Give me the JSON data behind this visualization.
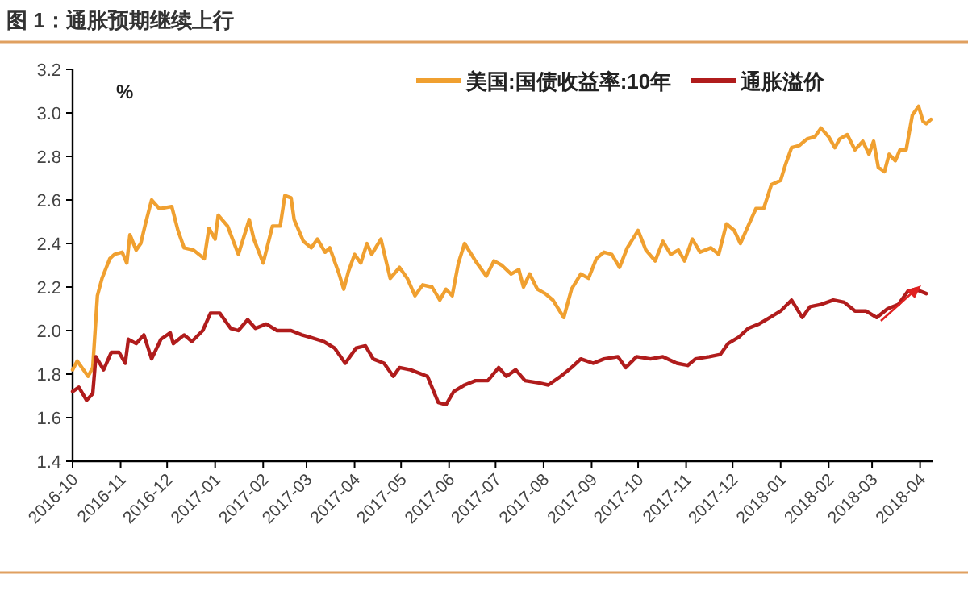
{
  "chart_data": {
    "type": "line",
    "title": "图 1：通胀预期继续上行",
    "ylabel": "%",
    "legend": "top right",
    "grid": false,
    "marker": "none",
    "line_style": "solid",
    "xlim": [
      "2016-10-01",
      "2018-04-09"
    ],
    "xticks": [
      {
        "value": "2016-10-01",
        "label": "2016-10"
      },
      {
        "value": "2016-11-01",
        "label": "2016-11"
      },
      {
        "value": "2016-12-01",
        "label": "2016-12"
      },
      {
        "value": "2017-01-01",
        "label": "2017-01"
      },
      {
        "value": "2017-02-01",
        "label": "2017-02"
      },
      {
        "value": "2017-03-01",
        "label": "2017-03"
      },
      {
        "value": "2017-04-01",
        "label": "2017-04"
      },
      {
        "value": "2017-05-01",
        "label": "2017-05"
      },
      {
        "value": "2017-06-01",
        "label": "2017-06"
      },
      {
        "value": "2017-07-01",
        "label": "2017-07"
      },
      {
        "value": "2017-08-01",
        "label": "2017-08"
      },
      {
        "value": "2017-09-01",
        "label": "2017-09"
      },
      {
        "value": "2017-10-01",
        "label": "2017-10"
      },
      {
        "value": "2017-11-01",
        "label": "2017-11"
      },
      {
        "value": "2017-12-01",
        "label": "2017-12"
      },
      {
        "value": "2018-01-01",
        "label": "2018-01"
      },
      {
        "value": "2018-02-01",
        "label": "2018-02"
      },
      {
        "value": "2018-03-01",
        "label": "2018-03"
      },
      {
        "value": "2018-04-01",
        "label": "2018-04"
      }
    ],
    "ylim": [
      1.4,
      3.2
    ],
    "yticks": [
      {
        "value": 1.4,
        "label": "1.4"
      },
      {
        "value": 1.6,
        "label": "1.6"
      },
      {
        "value": 1.8,
        "label": "1.8"
      },
      {
        "value": 2.0,
        "label": "2.0"
      },
      {
        "value": 2.2,
        "label": "2.2"
      },
      {
        "value": 2.4,
        "label": "2.4"
      },
      {
        "value": 2.6,
        "label": "2.6"
      },
      {
        "value": 2.8,
        "label": "2.8"
      },
      {
        "value": 3.0,
        "label": "3.0"
      },
      {
        "value": 3.2,
        "label": "3.2"
      }
    ],
    "series": [
      {
        "name": "美国:国债收益率:10年",
        "color": "#f0a030",
        "x": [
          "2016-10-01",
          "2016-10-04",
          "2016-10-11",
          "2016-10-14",
          "2016-10-17",
          "2016-10-20",
          "2016-10-25",
          "2016-10-28",
          "2016-11-02",
          "2016-11-05",
          "2016-11-07",
          "2016-11-11",
          "2016-11-14",
          "2016-11-17",
          "2016-11-21",
          "2016-11-26",
          "2016-12-04",
          "2016-12-08",
          "2016-12-12",
          "2016-12-18",
          "2016-12-25",
          "2016-12-28",
          "2017-01-01",
          "2017-01-03",
          "2017-01-09",
          "2017-01-16",
          "2017-01-23",
          "2017-01-26",
          "2017-02-01",
          "2017-02-07",
          "2017-02-12",
          "2017-02-15",
          "2017-02-19",
          "2017-02-21",
          "2017-02-27",
          "2017-03-04",
          "2017-03-08",
          "2017-03-13",
          "2017-03-16",
          "2017-03-22",
          "2017-03-25",
          "2017-03-28",
          "2017-04-01",
          "2017-04-05",
          "2017-04-09",
          "2017-04-12",
          "2017-04-18",
          "2017-04-21",
          "2017-04-24",
          "2017-04-30",
          "2017-05-05",
          "2017-05-10",
          "2017-05-15",
          "2017-05-21",
          "2017-05-26",
          "2017-05-30",
          "2017-06-03",
          "2017-06-07",
          "2017-06-11",
          "2017-06-18",
          "2017-06-25",
          "2017-06-30",
          "2017-07-05",
          "2017-07-11",
          "2017-07-16",
          "2017-07-19",
          "2017-07-23",
          "2017-07-28",
          "2017-08-02",
          "2017-08-07",
          "2017-08-14",
          "2017-08-19",
          "2017-08-25",
          "2017-08-30",
          "2017-09-04",
          "2017-09-09",
          "2017-09-14",
          "2017-09-19",
          "2017-09-24",
          "2017-10-01",
          "2017-10-06",
          "2017-10-12",
          "2017-10-17",
          "2017-10-22",
          "2017-10-27",
          "2017-10-31",
          "2017-11-05",
          "2017-11-10",
          "2017-11-17",
          "2017-11-22",
          "2017-11-27",
          "2017-12-02",
          "2017-12-06",
          "2017-12-11",
          "2017-12-16",
          "2017-12-21",
          "2017-12-26",
          "2018-01-01",
          "2018-01-04",
          "2018-01-08",
          "2018-01-13",
          "2018-01-18",
          "2018-01-23",
          "2018-01-27",
          "2018-02-01",
          "2018-02-05",
          "2018-02-08",
          "2018-02-13",
          "2018-02-18",
          "2018-02-23",
          "2018-02-27",
          "2018-03-02",
          "2018-03-05",
          "2018-03-09",
          "2018-03-12",
          "2018-03-16",
          "2018-03-19",
          "2018-03-23",
          "2018-03-27",
          "2018-03-31",
          "2018-04-03",
          "2018-04-05",
          "2018-04-08"
        ],
        "values": [
          1.82,
          1.86,
          1.79,
          1.83,
          2.16,
          2.24,
          2.33,
          2.35,
          2.36,
          2.31,
          2.44,
          2.37,
          2.4,
          2.49,
          2.6,
          2.56,
          2.57,
          2.46,
          2.38,
          2.37,
          2.33,
          2.47,
          2.42,
          2.53,
          2.48,
          2.35,
          2.51,
          2.42,
          2.31,
          2.48,
          2.48,
          2.62,
          2.61,
          2.51,
          2.41,
          2.38,
          2.42,
          2.36,
          2.38,
          2.26,
          2.19,
          2.27,
          2.35,
          2.31,
          2.4,
          2.35,
          2.42,
          2.33,
          2.24,
          2.29,
          2.24,
          2.16,
          2.21,
          2.2,
          2.14,
          2.19,
          2.16,
          2.31,
          2.4,
          2.32,
          2.25,
          2.32,
          2.3,
          2.26,
          2.28,
          2.2,
          2.26,
          2.19,
          2.17,
          2.14,
          2.06,
          2.19,
          2.26,
          2.24,
          2.33,
          2.36,
          2.35,
          2.29,
          2.38,
          2.46,
          2.37,
          2.32,
          2.41,
          2.35,
          2.37,
          2.32,
          2.42,
          2.36,
          2.38,
          2.35,
          2.49,
          2.46,
          2.4,
          2.48,
          2.56,
          2.56,
          2.67,
          2.69,
          2.76,
          2.84,
          2.85,
          2.88,
          2.89,
          2.93,
          2.89,
          2.84,
          2.88,
          2.9,
          2.83,
          2.87,
          2.81,
          2.87,
          2.75,
          2.73,
          2.81,
          2.78,
          2.83,
          2.83,
          2.99,
          3.03,
          2.96,
          2.95,
          2.97
        ]
      },
      {
        "name": "通胀溢价",
        "color": "#b01c1c",
        "x": [
          "2016-10-01",
          "2016-10-05",
          "2016-10-10",
          "2016-10-14",
          "2016-10-16",
          "2016-10-21",
          "2016-10-26",
          "2016-10-31",
          "2016-11-04",
          "2016-11-06",
          "2016-11-11",
          "2016-11-16",
          "2016-11-21",
          "2016-11-27",
          "2016-12-03",
          "2016-12-05",
          "2016-12-12",
          "2016-12-17",
          "2016-12-24",
          "2016-12-29",
          "2017-01-04",
          "2017-01-11",
          "2017-01-16",
          "2017-01-22",
          "2017-01-27",
          "2017-02-03",
          "2017-02-10",
          "2017-02-19",
          "2017-02-26",
          "2017-03-03",
          "2017-03-12",
          "2017-03-19",
          "2017-03-26",
          "2017-04-02",
          "2017-04-08",
          "2017-04-13",
          "2017-04-20",
          "2017-04-26",
          "2017-04-30",
          "2017-05-07",
          "2017-05-18",
          "2017-05-25",
          "2017-05-30",
          "2017-06-04",
          "2017-06-11",
          "2017-06-18",
          "2017-06-26",
          "2017-07-03",
          "2017-07-08",
          "2017-07-14",
          "2017-07-20",
          "2017-07-29",
          "2017-08-04",
          "2017-08-12",
          "2017-08-19",
          "2017-08-25",
          "2017-09-02",
          "2017-09-09",
          "2017-09-18",
          "2017-09-23",
          "2017-09-30",
          "2017-10-09",
          "2017-10-17",
          "2017-10-26",
          "2017-11-02",
          "2017-11-07",
          "2017-11-16",
          "2017-11-23",
          "2017-11-28",
          "2017-12-05",
          "2017-12-11",
          "2017-12-18",
          "2017-12-25",
          "2018-01-01",
          "2018-01-08",
          "2018-01-15",
          "2018-01-20",
          "2018-01-27",
          "2018-02-04",
          "2018-02-11",
          "2018-02-18",
          "2018-02-25",
          "2018-03-04",
          "2018-03-11",
          "2018-03-18",
          "2018-03-24",
          "2018-03-29",
          "2018-04-05"
        ],
        "values": [
          1.72,
          1.74,
          1.68,
          1.71,
          1.88,
          1.82,
          1.9,
          1.9,
          1.85,
          1.96,
          1.94,
          1.98,
          1.87,
          1.96,
          1.99,
          1.94,
          1.98,
          1.95,
          2.0,
          2.08,
          2.08,
          2.01,
          2.0,
          2.05,
          2.01,
          2.03,
          2.0,
          2.0,
          1.98,
          1.97,
          1.95,
          1.92,
          1.85,
          1.92,
          1.93,
          1.87,
          1.85,
          1.79,
          1.83,
          1.82,
          1.79,
          1.67,
          1.66,
          1.72,
          1.75,
          1.77,
          1.77,
          1.83,
          1.79,
          1.82,
          1.77,
          1.76,
          1.75,
          1.79,
          1.83,
          1.87,
          1.85,
          1.87,
          1.88,
          1.83,
          1.88,
          1.87,
          1.88,
          1.85,
          1.84,
          1.87,
          1.88,
          1.89,
          1.94,
          1.97,
          2.01,
          2.03,
          2.06,
          2.09,
          2.14,
          2.06,
          2.11,
          2.12,
          2.14,
          2.13,
          2.09,
          2.09,
          2.06,
          2.1,
          2.12,
          2.18,
          2.19,
          2.17
        ]
      }
    ]
  }
}
